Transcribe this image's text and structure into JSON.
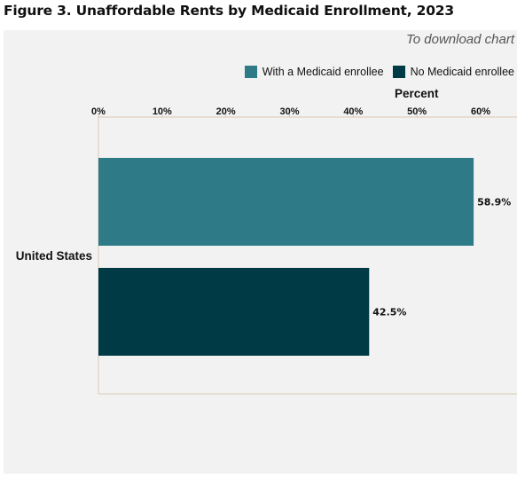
{
  "header": {
    "title": "Figure 3. Unaffordable Rents by Medicaid Enrollment, 2023",
    "download_label": "To download chart"
  },
  "chart_data": {
    "type": "bar",
    "orientation": "horizontal",
    "categories": [
      "United States"
    ],
    "series": [
      {
        "name": "With a Medicaid enrollee",
        "values": [
          58.9
        ],
        "color": "#2e7a87",
        "label": "58.9%"
      },
      {
        "name": "No Medicaid enrollee",
        "values": [
          42.5
        ],
        "color": "#003a45",
        "label": "42.5%"
      }
    ],
    "xlabel": "Percent",
    "xticks": [
      "0%",
      "10%",
      "20%",
      "30%",
      "40%",
      "50%",
      "60%"
    ],
    "xlim": [
      0,
      60
    ],
    "legend_position": "top-right",
    "grid": false
  }
}
